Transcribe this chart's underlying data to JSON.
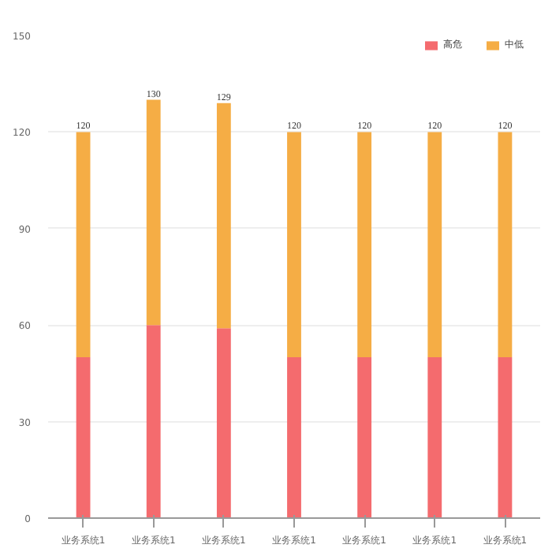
{
  "chart_data": {
    "type": "bar",
    "stacked": true,
    "categories": [
      "业务系统1",
      "业务系统1",
      "业务系统1",
      "业务系统1",
      "业务系统1",
      "业务系统1",
      "业务系统1"
    ],
    "series": [
      {
        "name": "高危",
        "color": "#f46b6e",
        "values": [
          50,
          60,
          59,
          50,
          50,
          50,
          50
        ]
      },
      {
        "name": "中低",
        "color": "#f5ad45",
        "values": [
          70,
          70,
          70,
          70,
          70,
          70,
          70
        ]
      }
    ],
    "totals": [
      "120",
      "130",
      "129",
      "120",
      "120",
      "120",
      "120"
    ],
    "ylim": [
      0,
      150
    ],
    "yticks": [
      0,
      30,
      60,
      90,
      120,
      150
    ],
    "grid": "y",
    "legend": "top right"
  }
}
